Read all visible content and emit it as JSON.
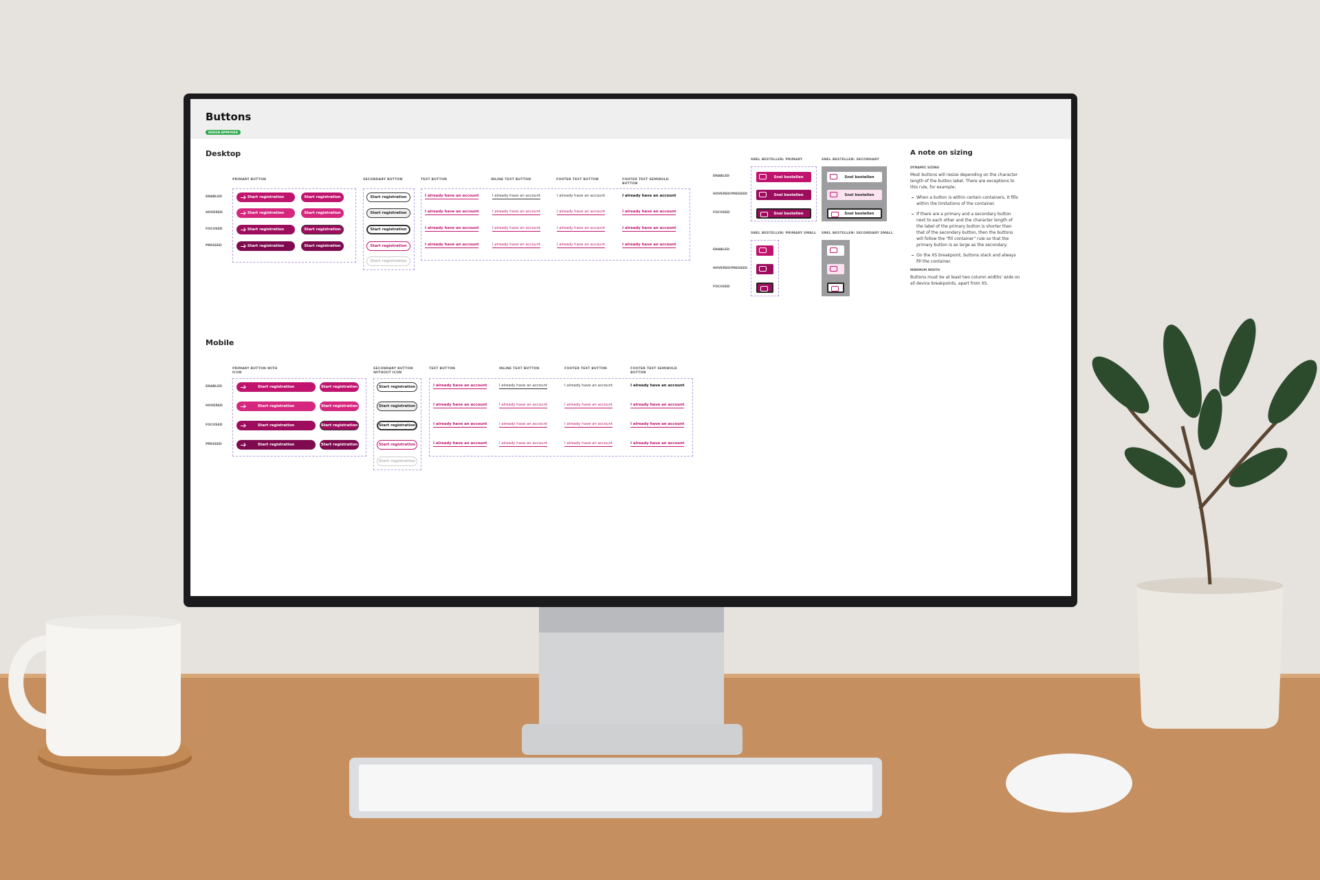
{
  "header": {
    "title": "Buttons",
    "badge": "DESIGN APPROVED"
  },
  "desktop": {
    "title": "Desktop",
    "columns": [
      "PRIMARY BUTTON",
      "SECONDARY BUTTON",
      "TEXT BUTTON",
      "INLINE TEXT BUTTON",
      "FOOTER TEXT BUTTON",
      "FOOTER TEXT SEMIBOLD BUTTON"
    ],
    "states": [
      "ENABLED",
      "HOVERED",
      "FOCUSED",
      "PRESSED"
    ],
    "button_label": "Start registration",
    "link_label": "I already have an account"
  },
  "snel": {
    "columns": [
      "SNEL BESTELLEN: PRIMARY",
      "SNEL BESTELLEN: SECONDARY",
      "SNEL BESTELLEN: PRIMARY SMALL",
      "SNEL BESTELLEN: SECONDARY SMALL"
    ],
    "states": [
      "ENABLED",
      "HOVERED/PRESSED",
      "FOCUSED"
    ],
    "button_label": "Snel bestellen"
  },
  "note": {
    "title": "A note on sizing",
    "subheading": "DYNAMIC SIZING",
    "intro": "Most buttons will resize depending on the character length of the button label. There are exceptions to this rule, for example:",
    "bullets": [
      "When a button is within certain containers, it fills within the limitations of the container.",
      "If there are a primary and a secondary button next to each other and the character length of the label of the primary button is shorter than that of the secondary button, then the buttons will follow the \"fill container\" rule so that the primary button is as large as the secondary.",
      "On the XS breakpoint, buttons stack and always fill the container."
    ],
    "subheading_2": "MINIMUM WIDTH",
    "text_2": "Buttons must be at least two column widths' wide on all device breakpoints, apart from XS."
  },
  "mobile": {
    "title": "Mobile",
    "columns": [
      "PRIMARY BUTTON WITH ICON",
      "SECONDARY BUTTON WITHOUT ICON",
      "TEXT BUTTON",
      "INLINE TEXT BUTTON",
      "FOOTER TEXT BUTTON",
      "FOOTER TEXT SEMIBOLD BUTTON"
    ],
    "states": [
      "ENABLED",
      "HOVERED",
      "FOCUSED",
      "PRESSED"
    ],
    "button_label": "Start registration",
    "link_label": "I already have an account"
  }
}
